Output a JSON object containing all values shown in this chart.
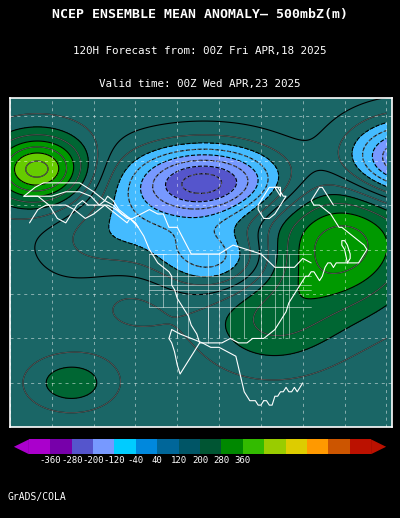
{
  "title_line1": "NCEP ENSEMBLE MEAN ANOMALY– 500mbZ(m)",
  "title_line2": "120H Forecast from: 00Z Fri APR,18 2025",
  "title_line3": "Valid time: 00Z Wed APR,23 2025",
  "background_color": "#000000",
  "map_bg_color": "#1a6666",
  "footer_text": "GrADS/COLA",
  "cbar_colors": [
    "#AA00CC",
    "#7700AA",
    "#5555CC",
    "#7799FF",
    "#00CCFF",
    "#0088DD",
    "#006699",
    "#005566",
    "#005533",
    "#008800",
    "#33BB00",
    "#99CC00",
    "#DDCC00",
    "#FF9900",
    "#CC5500",
    "#BB1100"
  ],
  "cbar_labels": [
    "-360",
    "-280",
    "-200",
    "-120",
    "-40",
    "40",
    "120",
    "200",
    "280",
    "360"
  ],
  "fill_levels": [
    -400,
    -360,
    -280,
    -200,
    -120,
    -40,
    40,
    120,
    200,
    280,
    360,
    400
  ],
  "fill_colors": [
    "#AA00CC",
    "#AA00CC",
    "#5555CC",
    "#7799FF",
    "#44BBFF",
    "#1a6666",
    "#1a6666",
    "#006633",
    "#009900",
    "#66CC00",
    "#FFCC00",
    "#FF8800"
  ]
}
